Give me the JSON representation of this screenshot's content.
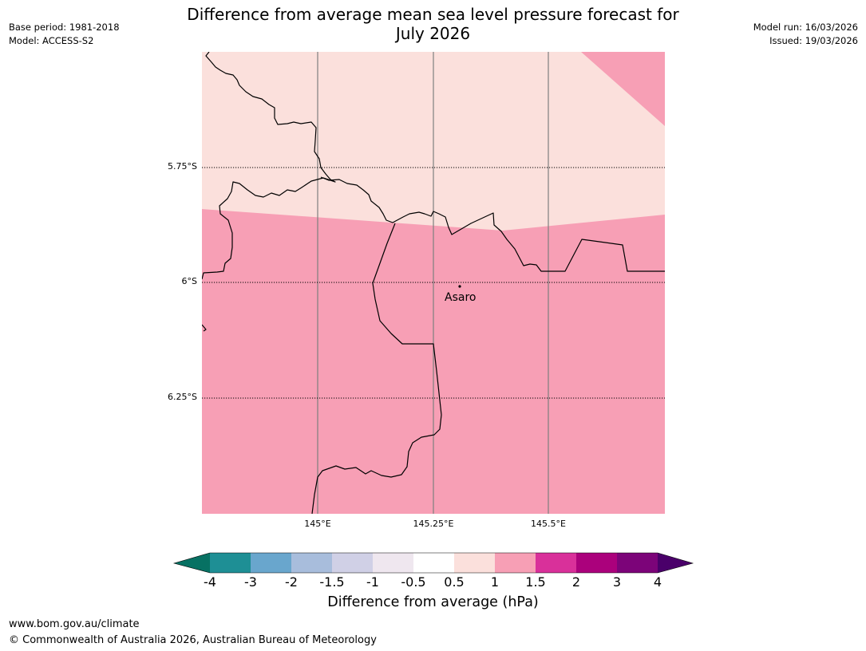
{
  "header": {
    "base_period": "Base period: 1981-2018",
    "model": "Model: ACCESS-S2",
    "title_line1": "Difference from average mean sea level pressure forecast for",
    "title_line2": "July 2026",
    "model_run": "Model run: 16/03/2026",
    "issued": "Issued: 19/03/2026"
  },
  "map": {
    "latitude_labels": [
      "5.75°S",
      "6°S",
      "6.25°S"
    ],
    "longitude_labels": [
      "145°E",
      "145.25°E",
      "145.5°E"
    ],
    "place": {
      "name": "Asaro"
    },
    "colors": {
      "low_band": "#fbe0dc",
      "high_band": "#f79fb5",
      "border": "#000000",
      "graticule": "#7f7f7f"
    }
  },
  "colorbar": {
    "ticks": [
      "-4",
      "-3",
      "-2",
      "-1.5",
      "-1",
      "-0.5",
      "0.5",
      "1",
      "1.5",
      "2",
      "3",
      "4"
    ],
    "colors": [
      "#077163",
      "#1e8f95",
      "#69a6cd",
      "#a8bddc",
      "#d0d0e6",
      "#efe7ef",
      "#ffffff",
      "#fbe0dc",
      "#f79fb5",
      "#d9309a",
      "#ab017c",
      "#7c0479",
      "#4a006a"
    ],
    "label": "Difference from average (hPa)"
  },
  "footer": {
    "url": "www.bom.gov.au/climate",
    "copyright": "© Commonwealth of Australia 2026, Australian Bureau of Meteorology"
  }
}
